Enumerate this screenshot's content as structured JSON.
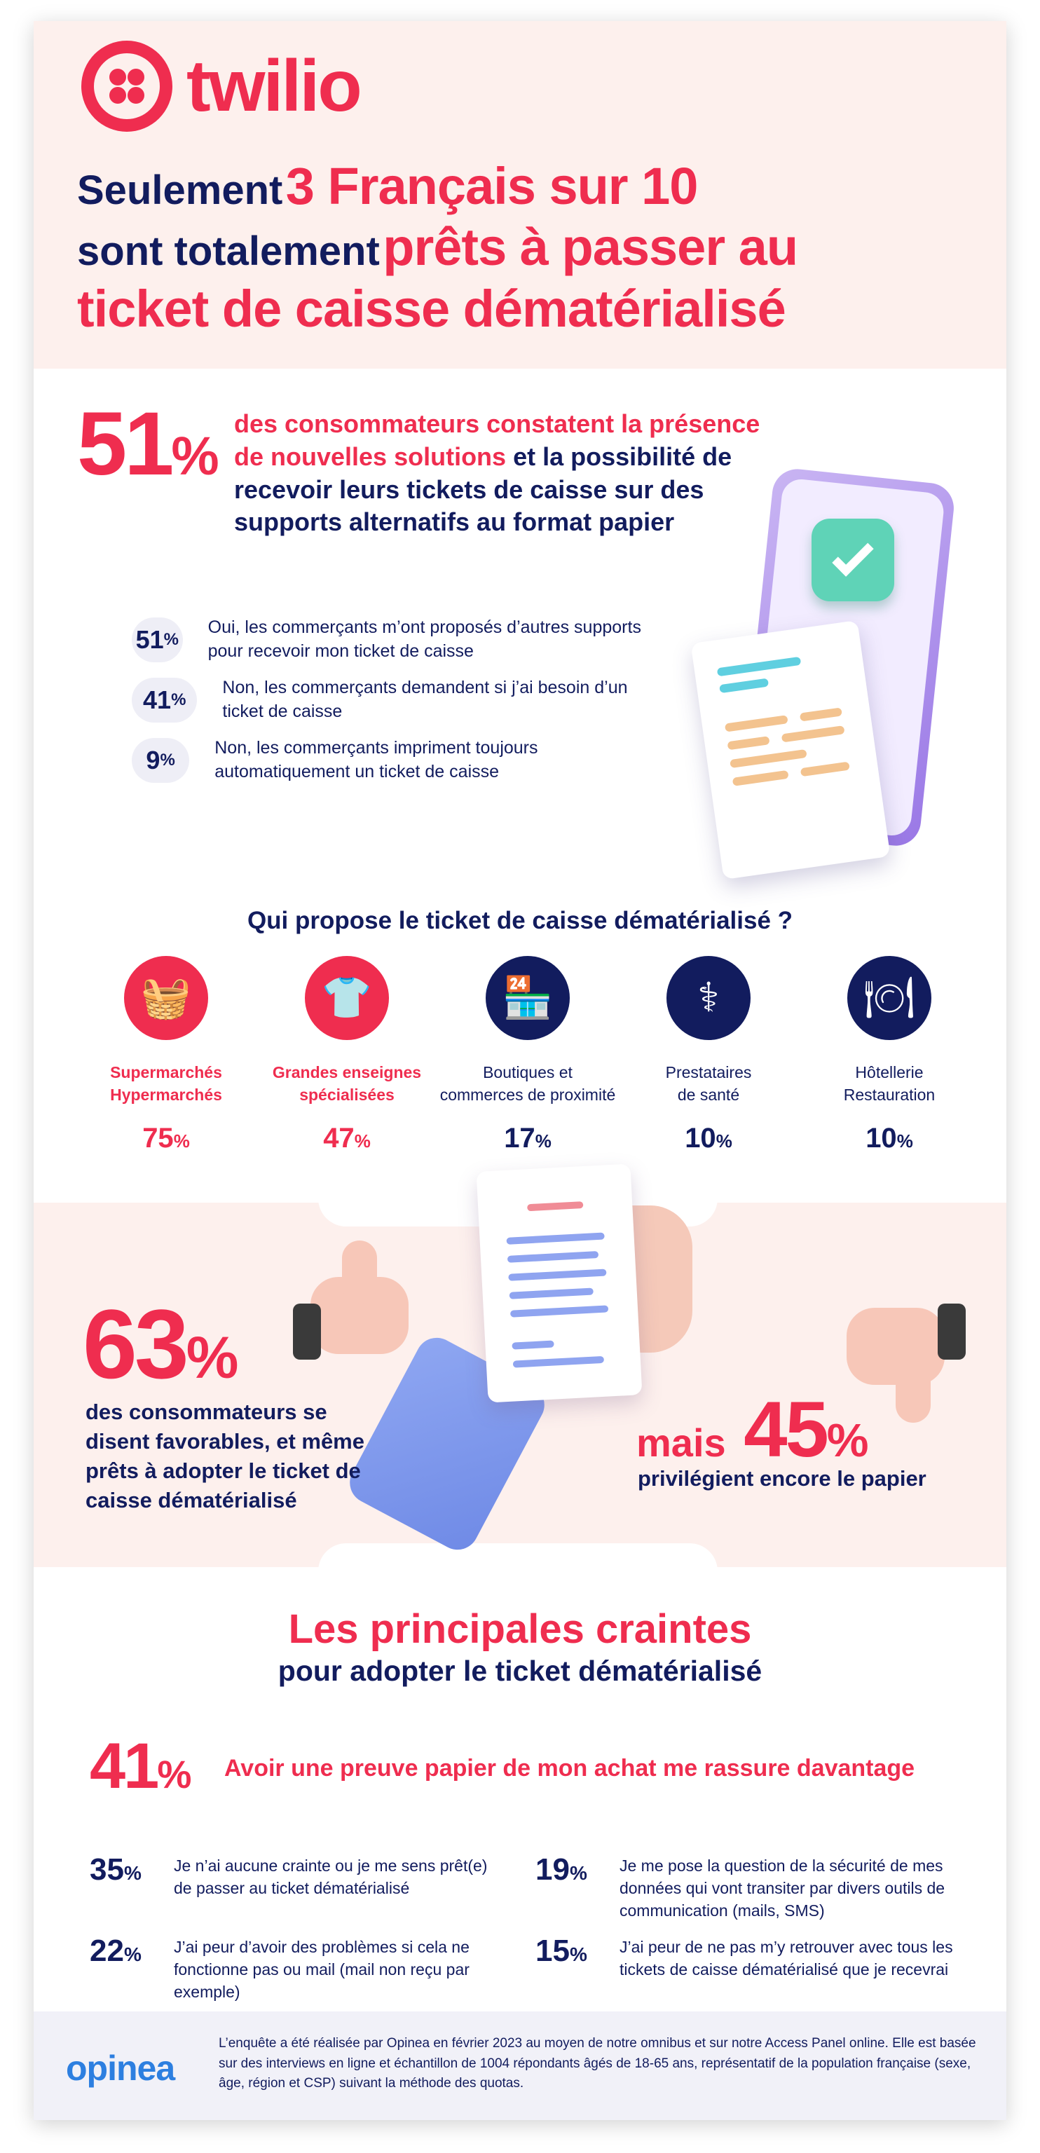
{
  "brand": {
    "name": "twilio"
  },
  "header": {
    "line1_prefix": "Seulement",
    "line1_highlight": "3 Français sur 10",
    "line2_prefix": "sont totalement",
    "line2_highlight": "prêts à passer au",
    "line3": "ticket de caisse dématérialisé"
  },
  "section1": {
    "stat_value": "51",
    "stat_unit": "%",
    "text_highlight": "des consommateurs constatent la présence de nouvelles solutions",
    "text_rest": "et la possibilité de recevoir leurs tickets de caisse sur des supports alternatifs au format papier",
    "options": [
      {
        "value": "51",
        "unit": "%",
        "text": "Oui, les commerçants m’ont proposés d’autres supports pour recevoir mon ticket de caisse"
      },
      {
        "value": "41",
        "unit": "%",
        "text": "Non, les commerçants demandent si j’ai besoin d’un ticket de caisse"
      },
      {
        "value": "9",
        "unit": "%",
        "text": "Non, les commerçants impriment toujours automatiquement un ticket de caisse"
      }
    ]
  },
  "who": {
    "title": "Qui propose le ticket de caisse dématérialisé ?",
    "categories": [
      {
        "icon": "basket-icon",
        "label1": "Supermarchés",
        "label2": "Hypermarchés",
        "value": "75",
        "unit": "%",
        "color": "#ef2d4f"
      },
      {
        "icon": "shirt-icon",
        "label1": "Grandes enseignes",
        "label2": "spécialisées",
        "value": "47",
        "unit": "%",
        "color": "#ef2d4f"
      },
      {
        "icon": "shop-icon",
        "label1": "Boutiques et",
        "label2": "commerces de proximité",
        "value": "17",
        "unit": "%",
        "color": "#121c5e"
      },
      {
        "icon": "caduceus-icon",
        "label1": "Prestataires",
        "label2": "de santé",
        "value": "10",
        "unit": "%",
        "color": "#121c5e"
      },
      {
        "icon": "plate-icon",
        "label1": "Hôtellerie",
        "label2": "Restauration",
        "value": "10",
        "unit": "%",
        "color": "#121c5e"
      }
    ]
  },
  "section3": {
    "fav_value": "63",
    "fav_unit": "%",
    "fav_text": "des consommateurs se disent favorables, et même prêts à adopter le ticket de caisse dématérialisé",
    "but_word": "mais",
    "paper_value": "45",
    "paper_unit": "%",
    "paper_text": "privilégient encore le papier"
  },
  "fears": {
    "title": "Les principales craintes",
    "subtitle": "pour adopter le ticket dématérialisé",
    "top_value": "41",
    "top_unit": "%",
    "top_text": "Avoir une preuve papier de mon achat me rassure davantage",
    "items": [
      {
        "value": "35",
        "unit": "%",
        "text": "Je n’ai aucune crainte ou je me sens prêt(e) de passer au ticket dématérialisé"
      },
      {
        "value": "19",
        "unit": "%",
        "text": "Je me pose la question de la sécurité de mes données qui vont transiter par divers outils de communication (mails, SMS)"
      },
      {
        "value": "22",
        "unit": "%",
        "text": "J’ai peur d’avoir des problèmes si cela ne fonctionne pas ou mail (mail non reçu par exemple)"
      },
      {
        "value": "15",
        "unit": "%",
        "text": "J’ai peur de ne pas m’y retrouver avec tous les tickets de caisse dématérialisé que je recevrai"
      }
    ]
  },
  "footer": {
    "brand": "opinea",
    "text": "L’enquête a été réalisée par Opinea en février 2023 au moyen de notre omnibus et sur notre Access Panel online. Elle est basée sur des interviews en ligne et échantillon de 1004 répondants âgés de 18-65 ans, représentatif de la population française (sexe, âge, région et CSP) suivant la méthode des quotas."
  },
  "colors": {
    "red": "#ef2d4f",
    "navy": "#121c5e",
    "blush": "#fdf0ed",
    "teal": "#5fd3b7",
    "purple": "#9a78e6"
  }
}
